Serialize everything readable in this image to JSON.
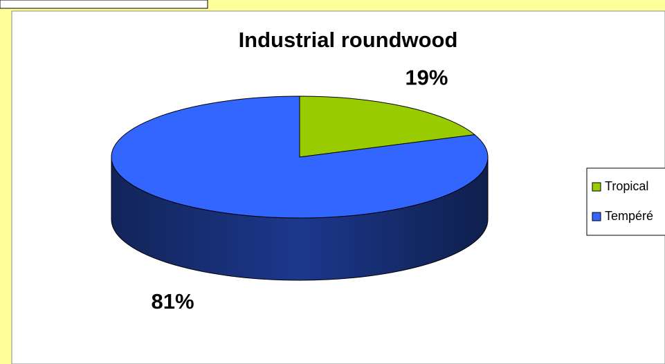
{
  "chart_data": {
    "type": "pie3d",
    "title": "Industrial roundwood",
    "categories": [
      "Tropical",
      "Tempéré"
    ],
    "values": [
      19,
      81
    ],
    "value_labels": [
      "19%",
      "81%"
    ],
    "colors": [
      "#99cc00",
      "#3366ff"
    ],
    "legend": "right"
  }
}
